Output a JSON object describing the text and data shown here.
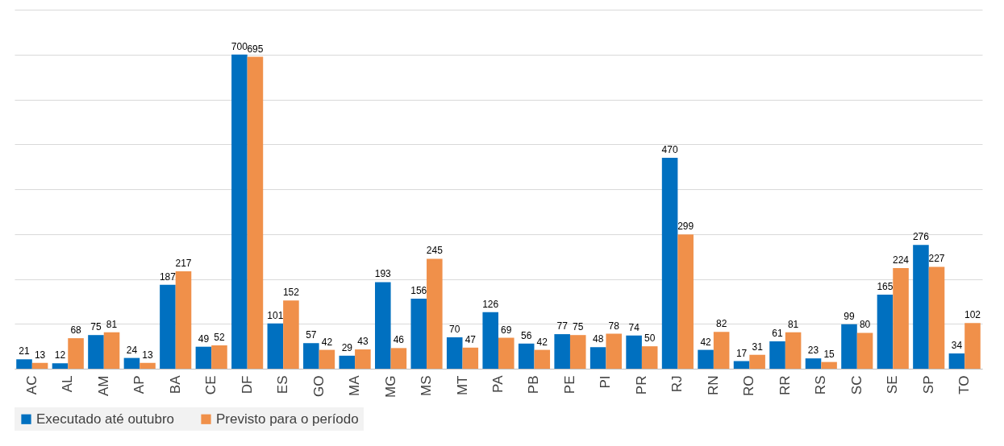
{
  "chart_data": {
    "type": "bar",
    "categories": [
      "AC",
      "AL",
      "AM",
      "AP",
      "BA",
      "CE",
      "DF",
      "ES",
      "GO",
      "MA",
      "MG",
      "MS",
      "MT",
      "PA",
      "PB",
      "PE",
      "PI",
      "PR",
      "RJ",
      "RN",
      "RO",
      "RR",
      "RS",
      "SC",
      "SE",
      "SP",
      "TO"
    ],
    "series": [
      {
        "name": "Executado até outubro",
        "color": "#0070c0",
        "values": [
          21,
          12,
          75,
          24,
          187,
          49,
          700,
          101,
          57,
          29,
          193,
          156,
          70,
          126,
          56,
          77,
          48,
          74,
          470,
          42,
          17,
          61,
          23,
          99,
          165,
          276,
          34
        ]
      },
      {
        "name": "Previsto para o período",
        "color": "#f0904a",
        "values": [
          13,
          68,
          81,
          13,
          217,
          52,
          695,
          152,
          42,
          43,
          46,
          245,
          47,
          69,
          42,
          75,
          78,
          50,
          299,
          82,
          31,
          81,
          15,
          80,
          224,
          227,
          102
        ]
      }
    ],
    "ylim": [
      0,
      800
    ],
    "yticks": [
      0,
      100,
      200,
      300,
      400,
      500,
      600,
      700,
      800
    ],
    "tick_labels": "x",
    "grid": "y",
    "legend": "bottom",
    "data_labels": true
  }
}
